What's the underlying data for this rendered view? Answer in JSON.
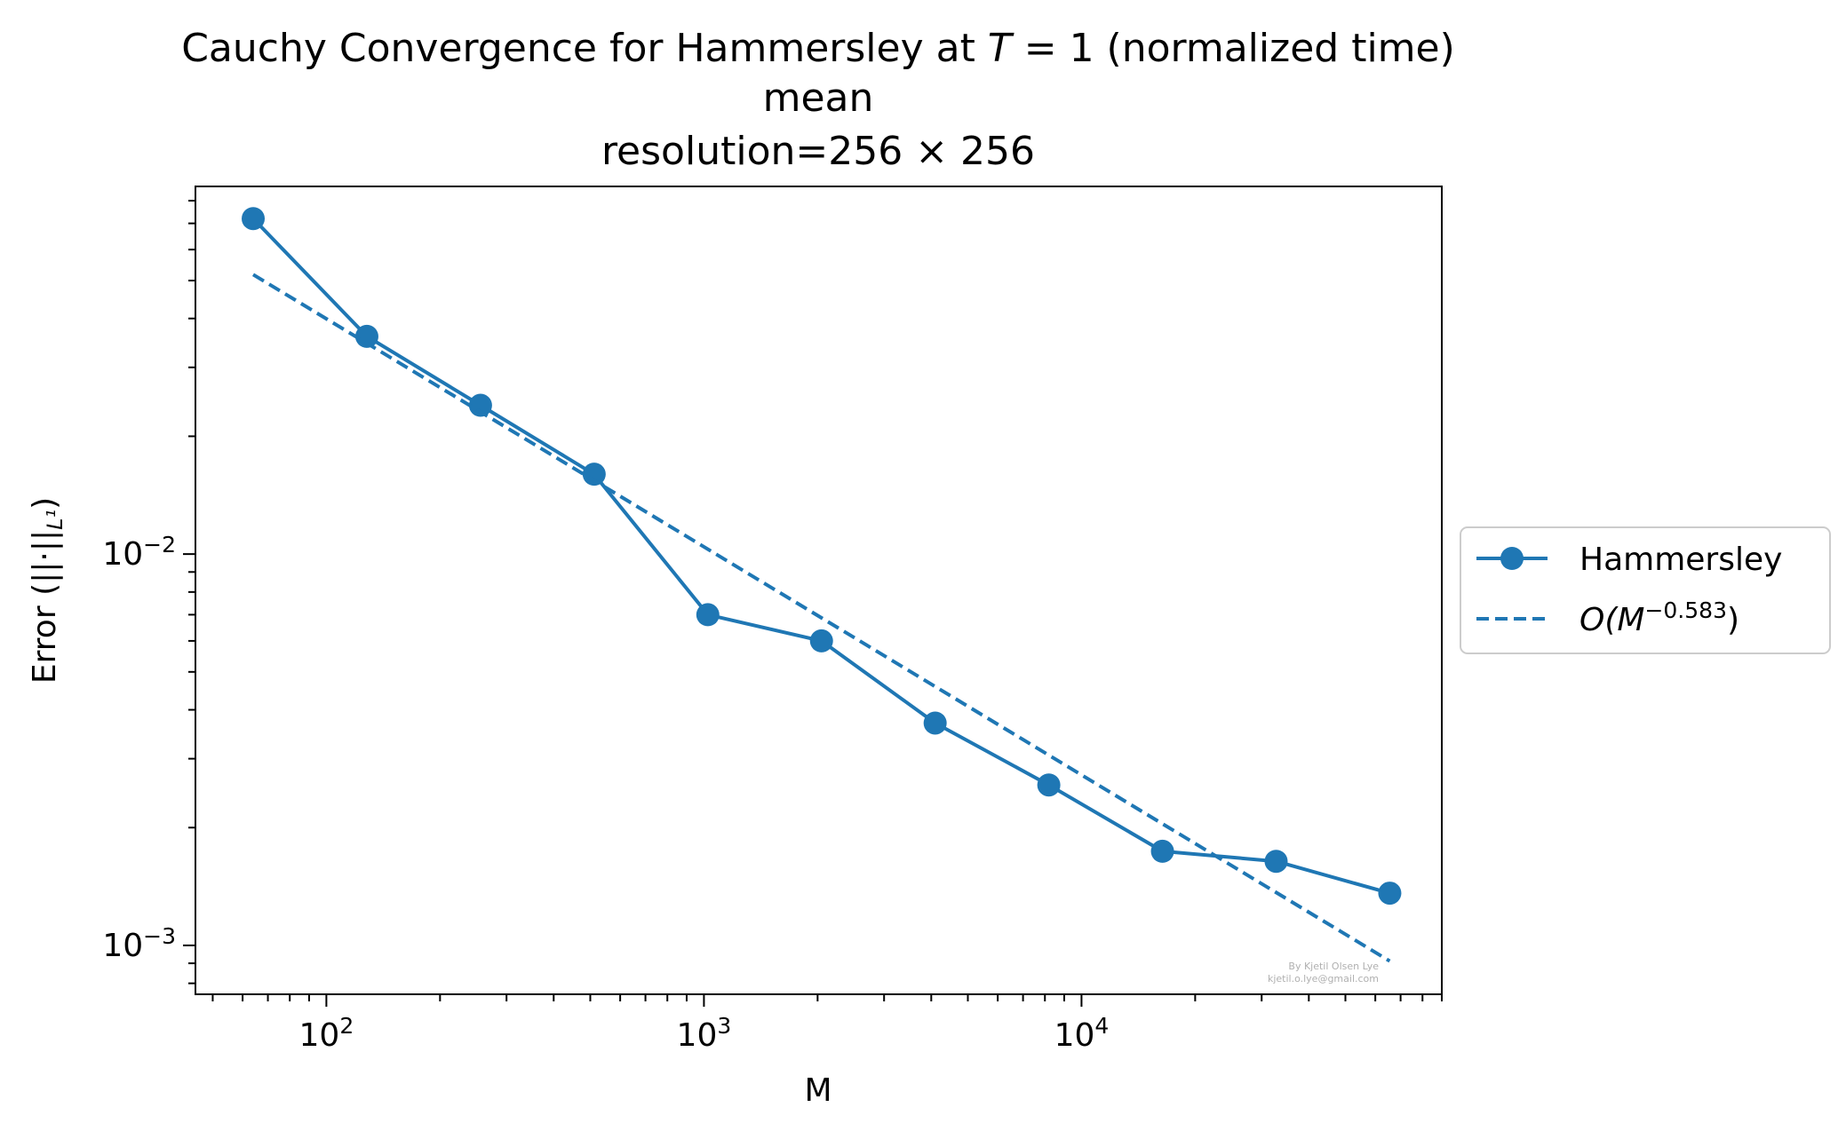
{
  "chart_data": {
    "type": "line",
    "title_lines": [
      "Cauchy Convergence for Hammersley at ",
      "mean",
      "resolution=256 × 256"
    ],
    "title_math": {
      "var": "T",
      "rest": " = 1 (normalized time)"
    },
    "xlabel": "M",
    "ylabel": "Error (||·||",
    "ylabel_sub": "L¹",
    "ylabel_close": ")",
    "xscale": "log",
    "yscale": "log",
    "xlim": [
      45,
      90000
    ],
    "ylim": [
      0.00075,
      0.087
    ],
    "x_major_ticks": [
      {
        "value": 100,
        "base": "10",
        "exp": "2"
      },
      {
        "value": 1000,
        "base": "10",
        "exp": "3"
      },
      {
        "value": 10000,
        "base": "10",
        "exp": "4"
      }
    ],
    "y_major_ticks": [
      {
        "value": 0.001,
        "base": "10",
        "exp": "−3"
      },
      {
        "value": 0.01,
        "base": "10",
        "exp": "−2"
      }
    ],
    "grid": false,
    "legend_position": "outside-right",
    "series": [
      {
        "name": "Hammersley",
        "style": "solid-marker",
        "color": "#1f77b4",
        "x": [
          64,
          128,
          256,
          512,
          1024,
          2048,
          4096,
          8192,
          16384,
          32768,
          65536
        ],
        "y": [
          0.072,
          0.036,
          0.024,
          0.016,
          0.007,
          0.006,
          0.0037,
          0.00257,
          0.00174,
          0.00164,
          0.00136
        ]
      },
      {
        "name_prefix": "O(M",
        "name_exp": "−0.583",
        "name_suffix": ")",
        "style": "dashed",
        "color": "#1f77b4",
        "x": [
          64,
          65536
        ],
        "y": [
          0.0518,
          0.000912
        ]
      }
    ],
    "watermark": [
      "By Kjetil Olsen Lye",
      "kjetil.o.lye@gmail.com"
    ]
  }
}
